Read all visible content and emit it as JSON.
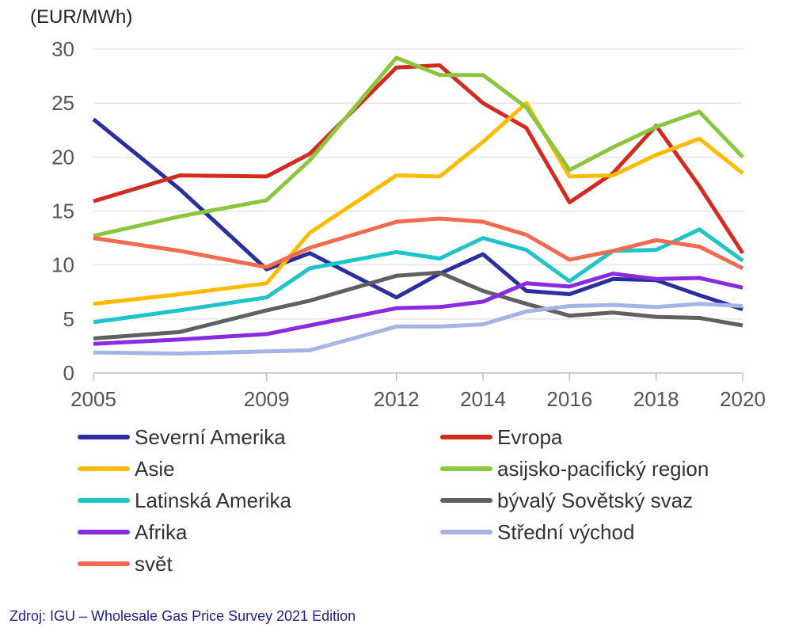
{
  "unit_label": "(EUR/MWh)",
  "source": "Zdroj: IGU – Wholesale Gas Price Survey 2021 Edition",
  "chart_data": {
    "type": "line",
    "title": "",
    "xlabel": "",
    "ylabel": "(EUR/MWh)",
    "ylim": [
      0,
      30
    ],
    "y_ticks": [
      0,
      5,
      10,
      15,
      20,
      25,
      30
    ],
    "grid": true,
    "legend_position": "bottom",
    "x": [
      2005,
      2007,
      2009,
      2010,
      2012,
      2013,
      2014,
      2015,
      2016,
      2017,
      2018,
      2019,
      2020
    ],
    "x_tick_labels": [
      "2005",
      "2009",
      "2012",
      "2014",
      "2016",
      "2018",
      "2020"
    ],
    "series": [
      {
        "name": "Severní Amerika",
        "color": "#2b2f9e",
        "values": [
          23.5,
          17.0,
          9.6,
          11.1,
          7.0,
          9.2,
          11.0,
          7.6,
          7.3,
          8.7,
          8.6,
          7.2,
          5.9
        ]
      },
      {
        "name": "Evropa",
        "color": "#d42b20",
        "values": [
          15.9,
          18.3,
          18.2,
          20.3,
          28.3,
          28.5,
          25.0,
          22.7,
          15.8,
          18.5,
          22.9,
          17.3,
          11.1
        ]
      },
      {
        "name": "Asie",
        "color": "#ffbb00",
        "values": [
          6.4,
          7.3,
          8.3,
          13.0,
          18.3,
          18.2,
          21.4,
          25.0,
          18.2,
          18.3,
          20.2,
          21.7,
          18.5
        ]
      },
      {
        "name": "asijsko-pacifický region",
        "color": "#8cc63f",
        "values": [
          12.7,
          14.5,
          16.0,
          19.7,
          29.2,
          27.6,
          27.6,
          24.6,
          18.8,
          20.9,
          22.8,
          24.2,
          20.0
        ]
      },
      {
        "name": "Latinská Amerika",
        "color": "#1fc4c8",
        "values": [
          4.7,
          5.8,
          7.0,
          9.7,
          11.2,
          10.6,
          12.5,
          11.4,
          8.5,
          11.3,
          11.4,
          13.3,
          10.4
        ]
      },
      {
        "name": "bývalý Sovětský svaz",
        "color": "#606060",
        "values": [
          3.2,
          3.8,
          5.8,
          6.7,
          9.0,
          9.3,
          7.6,
          6.4,
          5.3,
          5.6,
          5.2,
          5.1,
          4.4
        ]
      },
      {
        "name": "Afrika",
        "color": "#8a2be2",
        "values": [
          2.7,
          3.1,
          3.6,
          4.4,
          6.0,
          6.1,
          6.6,
          8.3,
          8.0,
          9.2,
          8.7,
          8.8,
          7.9
        ]
      },
      {
        "name": "Střední východ",
        "color": "#a4b4e4",
        "values": [
          1.9,
          1.8,
          2.0,
          2.1,
          4.3,
          4.3,
          4.5,
          5.7,
          6.2,
          6.3,
          6.1,
          6.4,
          6.2
        ]
      },
      {
        "name": "svět",
        "color": "#f26a4f",
        "values": [
          12.5,
          11.3,
          9.8,
          11.6,
          14.0,
          14.3,
          14.0,
          12.8,
          10.5,
          11.3,
          12.3,
          11.7,
          9.7
        ]
      }
    ]
  }
}
